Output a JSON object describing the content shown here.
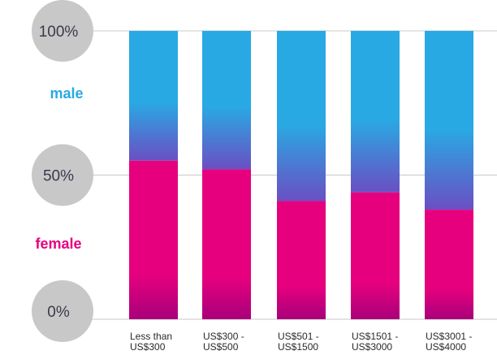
{
  "chart_data": {
    "type": "bar",
    "stacked": true,
    "percent": true,
    "categories": [
      [
        "Less than",
        "US$300"
      ],
      [
        "US$300 -",
        "US$500"
      ],
      [
        "US$501 -",
        "US$1500"
      ],
      [
        "US$1501 -",
        "US$3000"
      ],
      [
        "US$3001 -",
        "US$4000"
      ]
    ],
    "series": [
      {
        "name": "female",
        "values": [
          55,
          52,
          41,
          44,
          38
        ]
      },
      {
        "name": "male",
        "values": [
          45,
          48,
          59,
          56,
          62
        ]
      }
    ],
    "ylim": [
      0,
      100
    ],
    "yticks": [
      {
        "value": 0,
        "label": "0%"
      },
      {
        "value": 50,
        "label": "50%"
      },
      {
        "value": 100,
        "label": "100%"
      }
    ],
    "grid": true,
    "title": "",
    "xlabel": "",
    "ylabel": ""
  },
  "colors": {
    "male": "#29a9e3",
    "female": "#e6007e",
    "female_bottom": "#a8007a",
    "transition": "#6a4fc3",
    "tick_circle": "#c9c8c9",
    "grid": "#c8c8c8"
  }
}
